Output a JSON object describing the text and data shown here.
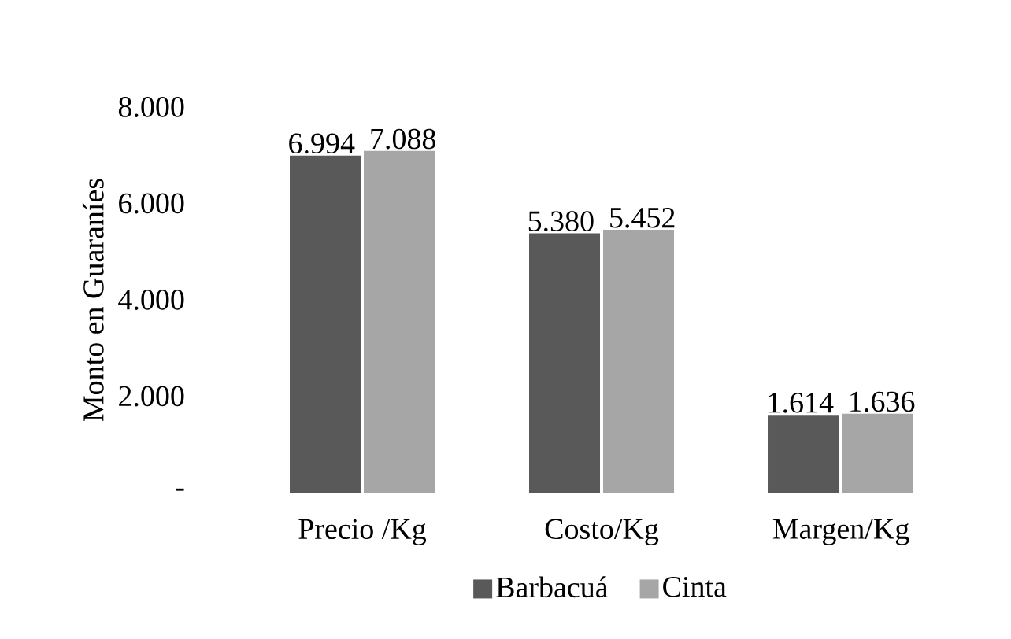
{
  "chart_data": {
    "type": "bar",
    "ylabel": "Monto en Guaraníes",
    "categories": [
      "Precio /Kg",
      "Costo/Kg",
      "Margen/Kg"
    ],
    "series": [
      {
        "name": "Barbacuá",
        "color": "#595959",
        "values": [
          6994,
          5380,
          1614
        ],
        "value_labels": [
          "6.994",
          "5.380",
          "1.614"
        ]
      },
      {
        "name": "Cinta",
        "color": "#a6a6a6",
        "values": [
          7088,
          5452,
          1636
        ],
        "value_labels": [
          "7.088",
          "5.452",
          "1.636"
        ]
      }
    ],
    "ylim": [
      0,
      8000
    ],
    "yticks": [
      {
        "value": 0,
        "label": "-"
      },
      {
        "value": 2000,
        "label": "2.000"
      },
      {
        "value": 4000,
        "label": "4.000"
      },
      {
        "value": 6000,
        "label": "6.000"
      },
      {
        "value": 8000,
        "label": "8.000"
      }
    ],
    "grid": false,
    "legend": "bottom"
  }
}
